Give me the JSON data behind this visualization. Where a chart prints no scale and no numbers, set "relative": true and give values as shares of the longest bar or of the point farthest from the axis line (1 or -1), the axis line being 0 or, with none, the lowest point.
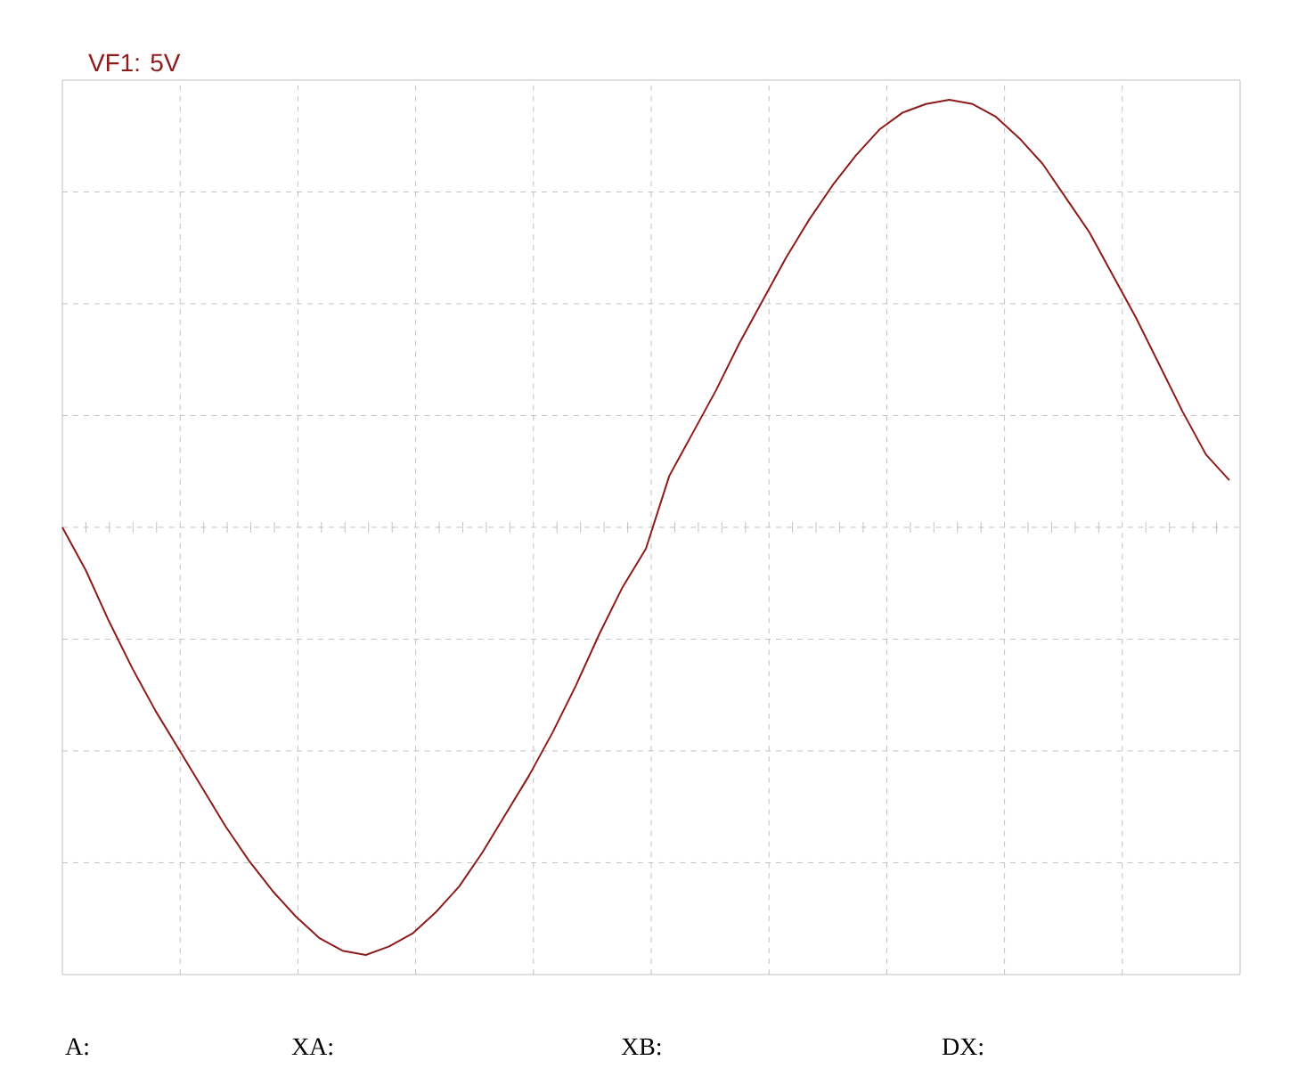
{
  "chart_data": {
    "type": "line",
    "title": "VF1: 5V",
    "relative": true,
    "grid": true,
    "categories": [
      null,
      null,
      null,
      null,
      null,
      null,
      null,
      null,
      null,
      null,
      null,
      null,
      null,
      null,
      null,
      null,
      null,
      null,
      null,
      null,
      null,
      null,
      null,
      null,
      null,
      null,
      null,
      null,
      null,
      null,
      null,
      null,
      null,
      null,
      null,
      null,
      null,
      null,
      null,
      null,
      null,
      null,
      null,
      null,
      null,
      null,
      null,
      null,
      null,
      null,
      null
    ],
    "series": [
      {
        "color": "#8c1c1c",
        "values": [
          0,
          -0.1,
          -0.22,
          -0.33,
          -0.43,
          -0.52,
          -0.61,
          -0.7,
          -0.78,
          -0.85,
          -0.91,
          -0.96,
          -0.99,
          -1.0,
          -0.98,
          -0.95,
          -0.9,
          -0.84,
          -0.76,
          -0.67,
          -0.58,
          -0.48,
          -0.37,
          -0.25,
          -0.14,
          -0.05,
          0.12,
          0.22,
          0.32,
          0.43,
          0.53,
          0.63,
          0.72,
          0.8,
          0.87,
          0.93,
          0.97,
          0.99,
          1.0,
          0.99,
          0.96,
          0.91,
          0.85,
          0.77,
          0.69,
          0.59,
          0.49,
          0.38,
          0.27,
          0.17,
          0.11
        ]
      }
    ],
    "annotations": [
      "A:",
      "XA:",
      "XB:",
      "DX:"
    ]
  }
}
